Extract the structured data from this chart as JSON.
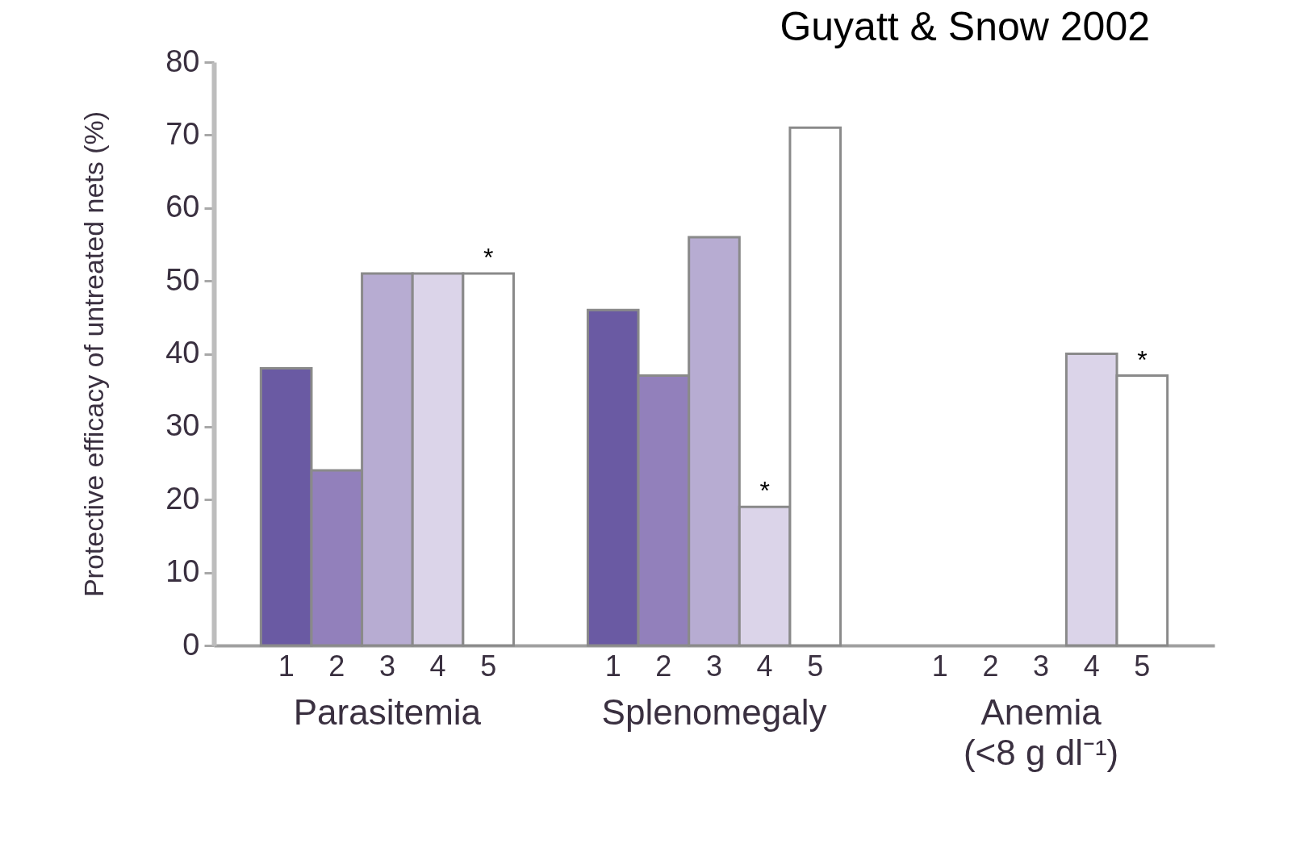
{
  "chart_data": {
    "type": "bar",
    "title": "Guyatt & Snow 2002",
    "ylabel": "Protective efficacy of untreated nets (%)",
    "categories": [
      "Parasitemia",
      "Splenomegaly",
      "Anemia\n(<8 g dl⁻¹)"
    ],
    "series": [
      {
        "name": "1",
        "color": "#6a5aa3",
        "values": [
          38,
          46,
          null
        ]
      },
      {
        "name": "2",
        "color": "#9280bb",
        "values": [
          24,
          37,
          null
        ]
      },
      {
        "name": "3",
        "color": "#b7acd2",
        "values": [
          51,
          56,
          null
        ]
      },
      {
        "name": "4",
        "color": "#dbd4e9",
        "values": [
          51,
          19,
          40
        ],
        "value_labels": [
          null,
          "*",
          null
        ]
      },
      {
        "name": "5",
        "color": "#ffffff",
        "values": [
          51,
          71,
          37
        ],
        "value_labels": [
          "*",
          null,
          "*"
        ]
      }
    ],
    "ylim": [
      0,
      80
    ],
    "yticks": [
      0,
      10,
      20,
      30,
      40,
      50,
      60,
      70,
      80
    ]
  }
}
